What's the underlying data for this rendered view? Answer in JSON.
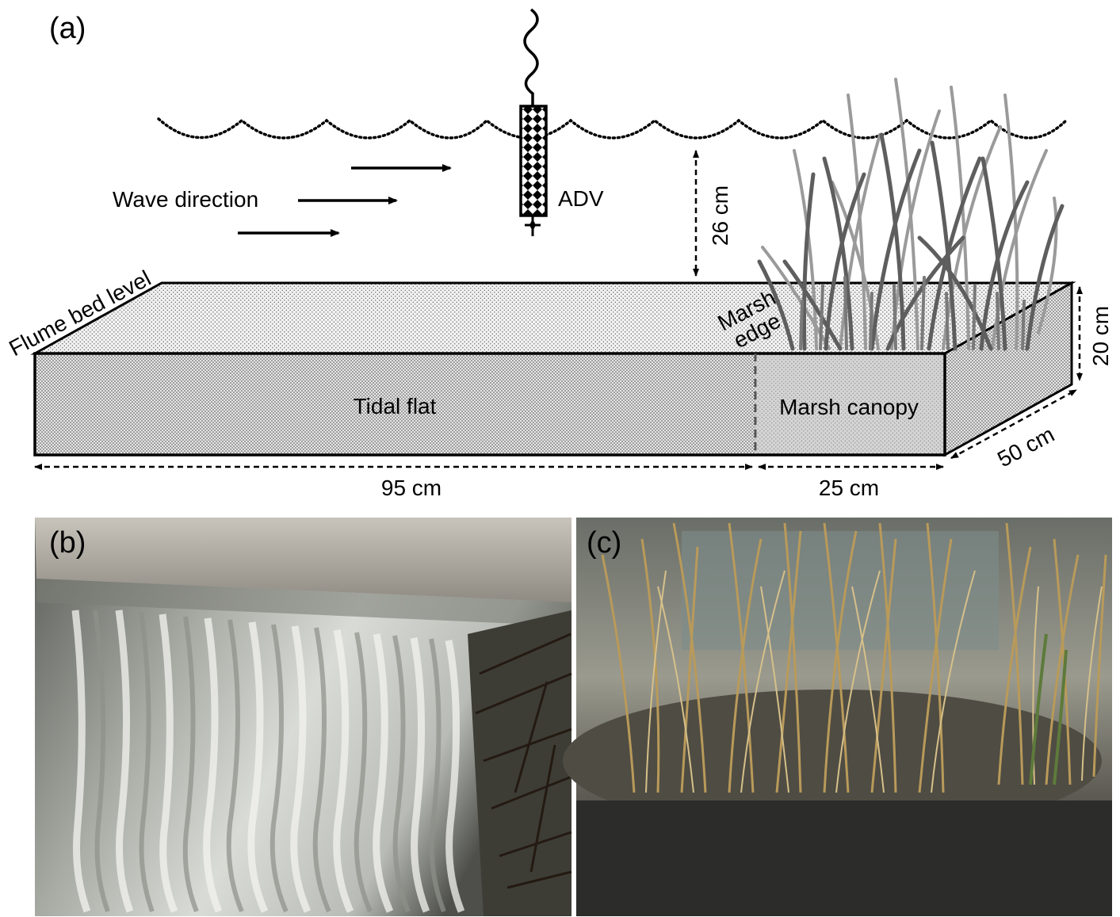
{
  "panels": {
    "a": "(a)",
    "b": "(b)",
    "c": "(c)"
  },
  "labels": {
    "wave_direction": "Wave direction",
    "adv": "ADV",
    "water_depth": "26 cm",
    "flume_bed_level": "Flume bed level",
    "marsh_edge_line1": "Marsh",
    "marsh_edge_line2": "edge",
    "tidal_flat": "Tidal flat",
    "marsh_canopy": "Marsh canopy",
    "flat_length": "95 cm",
    "canopy_length": "25 cm",
    "width": "50 cm",
    "height": "20 cm"
  },
  "colors": {
    "sediment": "#eeeeee",
    "marsh_front": "#d2d2d2",
    "grass_dark": "#5e5e5e",
    "grass_light": "#9a9a9a"
  }
}
